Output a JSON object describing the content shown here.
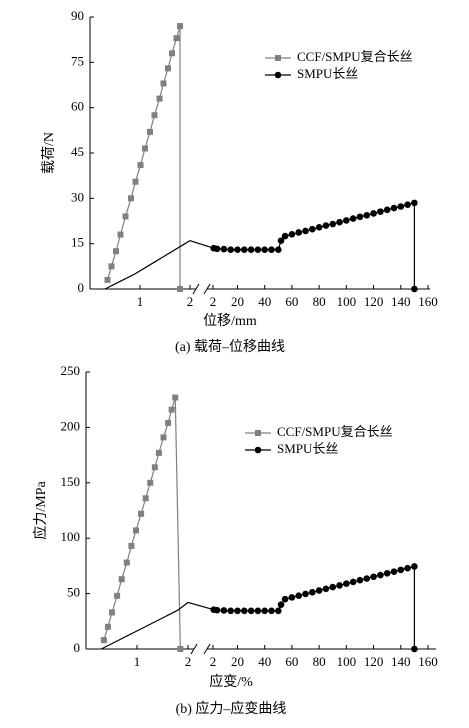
{
  "chart_data": [
    {
      "type": "line",
      "xlabel": "位移/mm",
      "ylabel": "载荷/N",
      "caption": "(a) 载荷–位移曲线",
      "ylim": [
        0,
        90
      ],
      "yticks": [
        0,
        15,
        30,
        45,
        60,
        75,
        90
      ],
      "x_segments": [
        {
          "xlim": [
            0,
            2
          ],
          "xticks": [
            1,
            2
          ]
        },
        {
          "xlim": [
            2,
            160
          ],
          "xticks": [
            2,
            20,
            40,
            60,
            80,
            100,
            120,
            140,
            160
          ]
        }
      ],
      "legend": "upper right",
      "series": [
        {
          "name": "CCF/SMPU复合长丝",
          "color": "#808080",
          "marker": "square",
          "marker_segments": [
            0
          ],
          "x": [
            0.35,
            0.43,
            0.52,
            0.61,
            0.71,
            0.82,
            0.91,
            1.01,
            1.1,
            1.2,
            1.29,
            1.39,
            1.47,
            1.56,
            1.64,
            1.73,
            1.8,
            1.8
          ],
          "values": [
            3,
            7.5,
            12.5,
            18,
            24,
            30,
            35.5,
            41,
            46.5,
            52,
            57.5,
            63,
            68,
            73,
            78,
            83,
            87,
            0
          ]
        },
        {
          "name": "SMPU长丝",
          "color": "#000000",
          "marker": "circle",
          "marker_segments": [
            1
          ],
          "x": [
            0.3,
            0.6,
            0.9,
            1.2,
            1.5,
            1.8,
            2,
            2.5,
            5,
            10,
            15,
            20,
            25,
            30,
            35,
            40,
            45,
            50,
            52,
            55,
            60,
            65,
            70,
            75,
            80,
            85,
            90,
            95,
            100,
            105,
            110,
            115,
            120,
            125,
            130,
            135,
            140,
            145,
            150,
            150
          ],
          "values": [
            0,
            2.5,
            5,
            8,
            11,
            14,
            16,
            13.5,
            13.3,
            13.2,
            13,
            13,
            13,
            13,
            13,
            13,
            13,
            13,
            16,
            17.5,
            18.1,
            18.7,
            19.2,
            19.8,
            20.4,
            21,
            21.5,
            22.1,
            22.7,
            23.3,
            23.9,
            24.4,
            25,
            25.6,
            26.2,
            26.8,
            27.3,
            27.9,
            28.5,
            0
          ]
        }
      ]
    },
    {
      "type": "line",
      "xlabel": "应变/%",
      "ylabel": "应力/MPa",
      "caption": "(b) 应力–应变曲线",
      "ylim": [
        0,
        250
      ],
      "yticks": [
        0,
        50,
        100,
        150,
        200,
        250
      ],
      "x_segments": [
        {
          "xlim": [
            0,
            2
          ],
          "xticks": [
            1,
            2
          ]
        },
        {
          "xlim": [
            2,
            160
          ],
          "xticks": [
            2,
            20,
            40,
            60,
            80,
            100,
            120,
            140,
            160
          ]
        }
      ],
      "legend": "upper right",
      "series": [
        {
          "name": "CCF/SMPU复合长丝",
          "color": "#808080",
          "marker": "square",
          "marker_segments": [
            0
          ],
          "x": [
            0.35,
            0.43,
            0.51,
            0.61,
            0.7,
            0.8,
            0.89,
            0.98,
            1.08,
            1.17,
            1.26,
            1.35,
            1.43,
            1.52,
            1.61,
            1.68,
            1.75,
            1.85
          ],
          "values": [
            8,
            20,
            33,
            48,
            63,
            78,
            93,
            107,
            122,
            136,
            150,
            164,
            177,
            191,
            204,
            216,
            227,
            0
          ]
        },
        {
          "name": "SMPU长丝",
          "color": "#000000",
          "marker": "circle",
          "marker_segments": [
            1
          ],
          "x": [
            0.3,
            0.6,
            0.9,
            1.2,
            1.5,
            1.8,
            2,
            2.5,
            5,
            10,
            15,
            20,
            25,
            30,
            35,
            40,
            45,
            50,
            52,
            55,
            60,
            65,
            70,
            75,
            80,
            85,
            90,
            95,
            100,
            105,
            110,
            115,
            120,
            125,
            130,
            135,
            140,
            145,
            150,
            150
          ],
          "values": [
            0,
            7,
            14,
            21,
            28,
            35,
            42,
            35.5,
            35,
            34.8,
            34.5,
            34.5,
            34.5,
            34.5,
            34.5,
            34.5,
            34.5,
            34.5,
            40,
            45,
            46.6,
            48.1,
            49.7,
            51.2,
            52.8,
            54.3,
            55.9,
            57.4,
            59,
            60.5,
            62.1,
            63.6,
            65.2,
            66.7,
            68.3,
            69.8,
            71.4,
            72.9,
            74.5,
            0
          ]
        }
      ]
    }
  ]
}
